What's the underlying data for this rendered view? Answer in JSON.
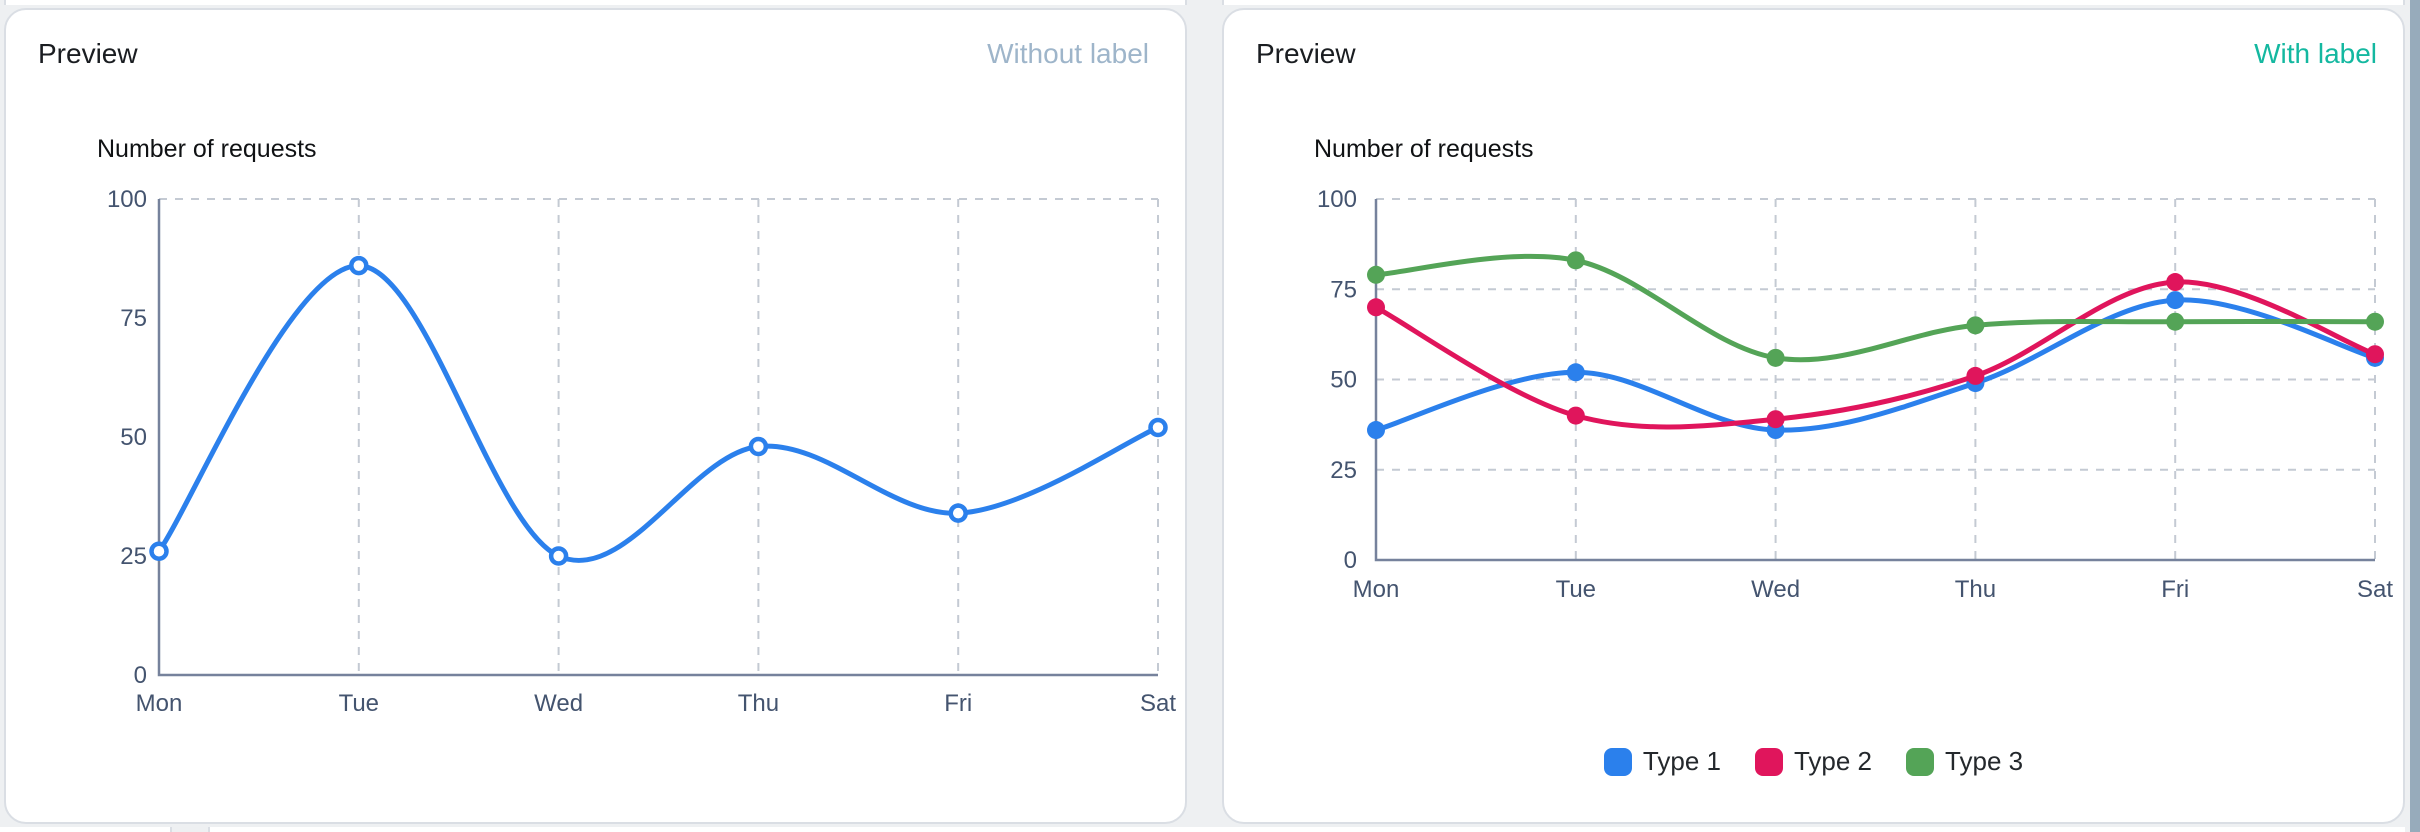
{
  "page": {
    "background": "#EEF0F2",
    "right_edge_strip_color": "#97ABBB"
  },
  "theme": {
    "axis_color": "#76829C",
    "grid_color": "#C4CAD3",
    "tick_label_color": "#44546F",
    "card_border": "#DADEE4"
  },
  "cards": [
    {
      "title": "Preview",
      "watermark": "Without label",
      "watermark_color": "#9EB5CA"
    },
    {
      "title": "Preview",
      "watermark": "With label",
      "watermark_color": "#14B8A0"
    }
  ],
  "chart_data": [
    {
      "type": "line",
      "title": "Number of requests",
      "variant_label": "Without label",
      "categories": [
        "Mon",
        "Tue",
        "Wed",
        "Thu",
        "Fri",
        "Sat"
      ],
      "series": [
        {
          "name": "Number of requests",
          "color": "#2B80EC",
          "marker": "open",
          "values": [
            26,
            86,
            25,
            48,
            34,
            52
          ]
        }
      ],
      "ylim": [
        0,
        100
      ],
      "y_ticks": [
        0,
        25,
        50,
        75,
        100
      ],
      "grid": {
        "vertical": true,
        "horizontal": "top-only"
      },
      "legend_position": "none"
    },
    {
      "type": "line",
      "title": "Number of requests",
      "variant_label": "With label",
      "categories": [
        "Mon",
        "Tue",
        "Wed",
        "Thu",
        "Fri",
        "Sat"
      ],
      "series": [
        {
          "name": "Type 1",
          "color": "#2B80EC",
          "marker": "filled",
          "values": [
            36,
            52,
            36,
            49,
            72,
            56
          ]
        },
        {
          "name": "Type 2",
          "color": "#E0155C",
          "marker": "filled",
          "values": [
            70,
            40,
            39,
            51,
            77,
            57
          ]
        },
        {
          "name": "Type 3",
          "color": "#54A457",
          "marker": "filled",
          "values": [
            79,
            83,
            56,
            65,
            66,
            66
          ]
        }
      ],
      "ylim": [
        0,
        100
      ],
      "y_ticks": [
        0,
        25,
        50,
        75,
        100
      ],
      "grid": {
        "vertical": true,
        "horizontal": "all"
      },
      "legend_position": "bottom"
    }
  ]
}
